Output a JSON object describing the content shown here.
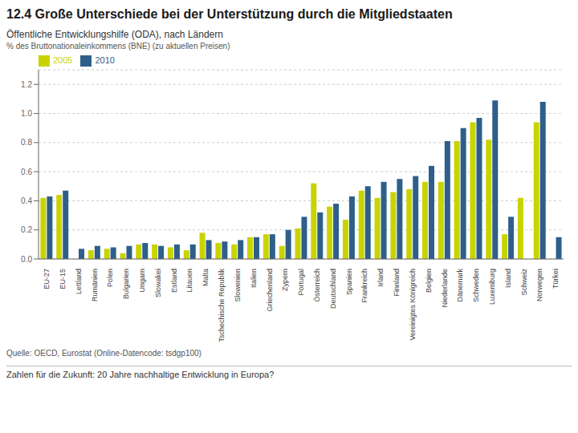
{
  "chart_data": {
    "type": "bar",
    "title": "12.4 Große Unterschiede bei der Unterstützung durch die Mitgliedstaaten",
    "subtitle": "Öffentliche Entwicklungshilfe (ODA), nach Ländern",
    "ylabel": "% des Bruttonationaleinkommens (BNE) (zu aktuellen Preisen)",
    "annotations": [
      "Quelle: OECD, Eurostat (Online-Datencode: tsdgp100)",
      "Zahlen für die Zukunft: 20 Jahre nachhaltige Entwicklung in Europa?"
    ],
    "categories": [
      "EU-27",
      "EU-15",
      "Lettland",
      "Rumänien",
      "Polen",
      "Bulgarien",
      "Ungarn",
      "Slowakei",
      "Estland",
      "Litauen",
      "Malta",
      "Tschechische Republik",
      "Slowenien",
      "Italien",
      "Griechenland",
      "Zypern",
      "Portugal",
      "Österreich",
      "Deutschland",
      "Spanien",
      "Frankreich",
      "Irland",
      "Finnland",
      "Vereinigtes Königreich",
      "Belgien",
      "Niederlande",
      "Dänemark",
      "Schweden",
      "Luxemburg",
      "Island",
      "Schweiz",
      "Norwegen",
      "Türkei"
    ],
    "series": [
      {
        "name": "2005",
        "color": "#c8d400",
        "values": [
          0.42,
          0.44,
          0.0,
          0.06,
          0.07,
          0.04,
          0.1,
          0.1,
          0.08,
          0.06,
          0.18,
          0.11,
          0.1,
          0.15,
          0.17,
          0.09,
          0.21,
          0.52,
          0.36,
          0.27,
          0.47,
          0.42,
          0.46,
          0.48,
          0.53,
          0.53,
          0.81,
          0.94,
          0.82,
          0.17,
          0.42,
          0.94,
          0.0
        ]
      },
      {
        "name": "2010",
        "color": "#2e5f8a",
        "values": [
          0.43,
          0.47,
          0.07,
          0.09,
          0.08,
          0.09,
          0.11,
          0.09,
          0.1,
          0.1,
          0.13,
          0.12,
          0.13,
          0.15,
          0.17,
          0.2,
          0.29,
          0.32,
          0.38,
          0.43,
          0.5,
          0.53,
          0.55,
          0.57,
          0.64,
          0.81,
          0.9,
          0.97,
          1.09,
          0.29,
          0.0,
          1.08,
          0.15
        ]
      }
    ],
    "ylim": [
      0,
      1.3
    ],
    "yticks": [
      {
        "value": 0,
        "label": "0.0"
      },
      0.2,
      0.4,
      0.6,
      0.8,
      {
        "value": 1,
        "label": "1.0"
      },
      1.2
    ],
    "grid": true,
    "legend": "top-left"
  }
}
